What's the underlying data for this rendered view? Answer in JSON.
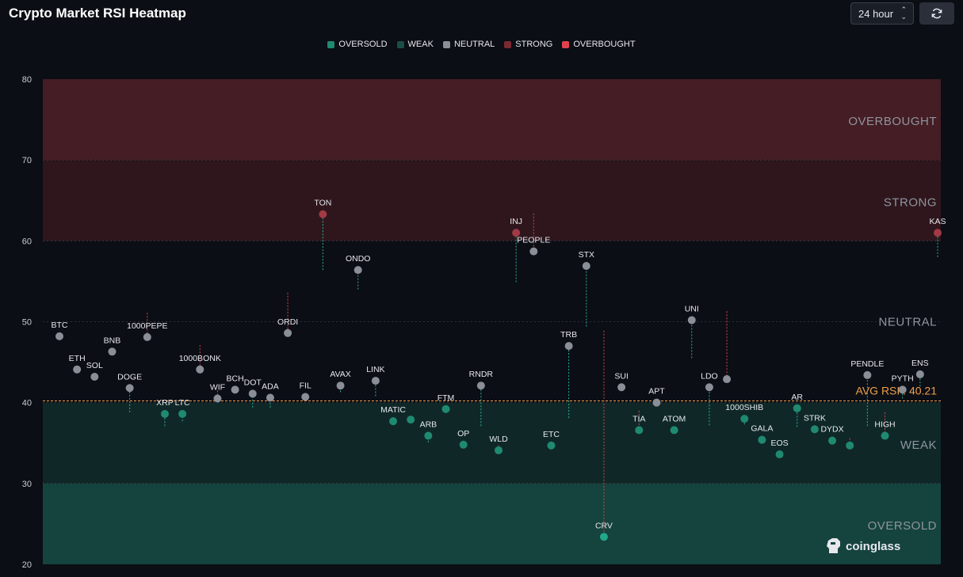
{
  "header": {
    "title": "Crypto Market RSI Heatmap",
    "period": "24 hour",
    "refresh_icon": "refresh-icon"
  },
  "colors": {
    "oversold": "#1f8a70",
    "weak": "#1b4d46",
    "neutral": "#8a8e96",
    "strong": "#7a2a30",
    "overbought": "#e0414f",
    "avg_line": "#f0a04b"
  },
  "watermark": "coinglass",
  "chart_data": {
    "type": "scatter",
    "title": "Crypto Market RSI Heatmap",
    "ylim": [
      20,
      80
    ],
    "yticks": [
      20,
      30,
      40,
      50,
      60,
      70,
      80
    ],
    "legend": [
      "OVERSOLD",
      "WEAK",
      "NEUTRAL",
      "STRONG",
      "OVERBOUGHT"
    ],
    "legend_position": "top-center",
    "zones": [
      {
        "name": "OVERSOLD",
        "from": 20,
        "to": 30
      },
      {
        "name": "WEAK",
        "from": 30,
        "to": 40
      },
      {
        "name": "NEUTRAL",
        "from": 40,
        "to": 60
      },
      {
        "name": "STRONG",
        "from": 60,
        "to": 70
      },
      {
        "name": "OVERBOUGHT",
        "from": 70,
        "to": 80
      }
    ],
    "avg_rsi": 40.21,
    "avg_label": "AVG RSI : 40.21",
    "points": [
      {
        "symbol": "BTC",
        "rsi": 48.2
      },
      {
        "symbol": "ETH",
        "rsi": 44.1,
        "prev": 44.2
      },
      {
        "symbol": "SOL",
        "rsi": 43.2
      },
      {
        "symbol": "BNB",
        "rsi": 46.3
      },
      {
        "symbol": "DOGE",
        "rsi": 41.8,
        "prev": 38.8
      },
      {
        "symbol": "1000PEPE",
        "rsi": 48.1,
        "prev": 51.1
      },
      {
        "symbol": "XRP",
        "rsi": 38.6,
        "prev": 37.1
      },
      {
        "symbol": "LTC",
        "rsi": 38.6,
        "prev": 37.7
      },
      {
        "symbol": "1000BONK",
        "rsi": 44.1,
        "prev": 47.1
      },
      {
        "symbol": "WIF",
        "rsi": 40.5,
        "prev": 41.5
      },
      {
        "symbol": "BCH",
        "rsi": 41.6
      },
      {
        "symbol": "DOT",
        "rsi": 41.1,
        "prev": 39.4
      },
      {
        "symbol": "ADA",
        "rsi": 40.6,
        "prev": 39.4
      },
      {
        "symbol": "ORDI",
        "rsi": 48.6,
        "prev": 53.6
      },
      {
        "symbol": "FIL",
        "rsi": 40.7,
        "prev": 41.0
      },
      {
        "symbol": "TON",
        "rsi": 63.3,
        "prev": 56.4
      },
      {
        "symbol": "AVAX",
        "rsi": 42.1,
        "prev": 41.3
      },
      {
        "symbol": "ONDO",
        "rsi": 56.4,
        "prev": 54.0
      },
      {
        "symbol": "LINK",
        "rsi": 42.7,
        "prev": 40.8
      },
      {
        "symbol": "MATIC",
        "rsi": 37.7
      },
      {
        "symbol": "MATIC_b",
        "rsi": 37.9,
        "label": ""
      },
      {
        "symbol": "ARB",
        "rsi": 35.9,
        "prev": 35.1
      },
      {
        "symbol": "FTM",
        "rsi": 39.2
      },
      {
        "symbol": "OP",
        "rsi": 34.8
      },
      {
        "symbol": "RNDR",
        "rsi": 42.1,
        "prev": 37.1
      },
      {
        "symbol": "WLD",
        "rsi": 34.1,
        "prev": 34.7
      },
      {
        "symbol": "INJ",
        "rsi": 61.0,
        "prev": 54.9
      },
      {
        "symbol": "PEOPLE",
        "rsi": 58.7,
        "prev": 63.4
      },
      {
        "symbol": "ETC",
        "rsi": 34.7
      },
      {
        "symbol": "TRB",
        "rsi": 47.0,
        "prev": 38.1
      },
      {
        "symbol": "STX",
        "rsi": 56.9,
        "prev": 49.4
      },
      {
        "symbol": "CRV",
        "rsi": 23.4,
        "prev": 48.9
      },
      {
        "symbol": "SUI",
        "rsi": 41.9
      },
      {
        "symbol": "TIA",
        "rsi": 36.6,
        "prev": 39.0
      },
      {
        "symbol": "APT",
        "rsi": 40.0
      },
      {
        "symbol": "ATOM",
        "rsi": 36.6
      },
      {
        "symbol": "UNI",
        "rsi": 50.2,
        "prev": 45.5
      },
      {
        "symbol": "LDO",
        "rsi": 41.9,
        "prev": 37.2
      },
      {
        "symbol": "LDO_b",
        "rsi": 42.9,
        "prev": 51.3,
        "label": ""
      },
      {
        "symbol": "1000SHIB",
        "rsi": 38.0,
        "prev": 37.3
      },
      {
        "symbol": "GALA",
        "rsi": 35.4
      },
      {
        "symbol": "EOS",
        "rsi": 33.6
      },
      {
        "symbol": "AR",
        "rsi": 39.3,
        "prev": 37.0
      },
      {
        "symbol": "STRK",
        "rsi": 36.7
      },
      {
        "symbol": "DYDX",
        "rsi": 35.3
      },
      {
        "symbol": "DYDX_b",
        "rsi": 34.7,
        "prev": 35.6,
        "label": ""
      },
      {
        "symbol": "PENDLE",
        "rsi": 43.4,
        "prev": 37.1
      },
      {
        "symbol": "HIGH",
        "rsi": 35.9,
        "prev": 38.8
      },
      {
        "symbol": "PYTH",
        "rsi": 41.6,
        "prev": 40.5
      },
      {
        "symbol": "ENS",
        "rsi": 43.5,
        "prev": 42.0
      },
      {
        "symbol": "KAS",
        "rsi": 61.0,
        "prev": 58.0
      }
    ]
  }
}
